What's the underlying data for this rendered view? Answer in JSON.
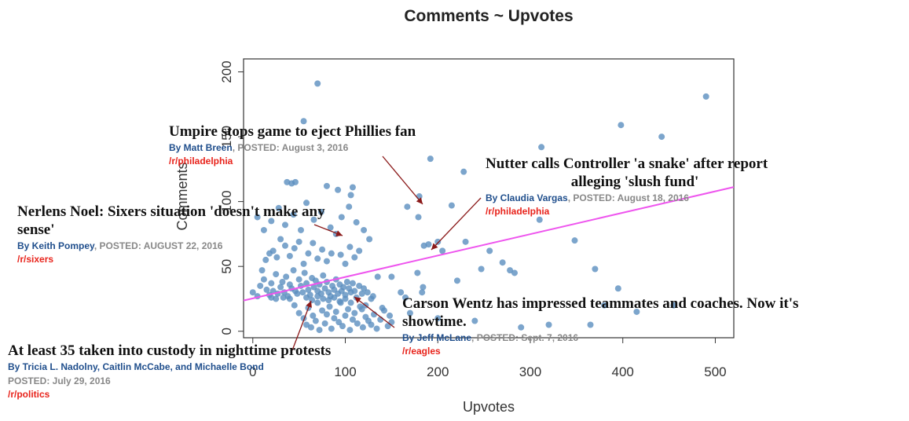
{
  "chart_data": {
    "type": "scatter",
    "title": "Comments ~ Upvotes",
    "xlabel": "Upvotes",
    "ylabel": "Comments",
    "xlim": [
      -10,
      520
    ],
    "ylim": [
      -5,
      210
    ],
    "x_ticks": [
      0,
      100,
      200,
      300,
      400,
      500
    ],
    "y_ticks": [
      0,
      50,
      100,
      150,
      200
    ],
    "x_tick_labels": [
      "0",
      "100",
      "200",
      "300",
      "400",
      "500"
    ],
    "y_tick_labels": [
      "0",
      "50",
      "100",
      "150",
      "200"
    ],
    "point_color": "#5b8fbf",
    "trend_color": "#ee55ee",
    "trendline": {
      "x": [
        -10,
        520
      ],
      "y": [
        23.7,
        111.2
      ]
    },
    "points": [
      [
        70,
        191
      ],
      [
        55,
        162
      ],
      [
        192,
        133
      ],
      [
        228,
        123
      ],
      [
        312,
        142
      ],
      [
        398,
        159
      ],
      [
        442,
        150
      ],
      [
        490,
        181
      ],
      [
        108,
        111
      ],
      [
        106,
        105
      ],
      [
        180,
        104
      ],
      [
        167,
        96
      ],
      [
        179,
        88
      ],
      [
        215,
        97
      ],
      [
        37,
        115
      ],
      [
        42,
        114
      ],
      [
        46,
        115
      ],
      [
        80,
        112
      ],
      [
        92,
        109
      ],
      [
        185,
        66
      ],
      [
        190,
        67
      ],
      [
        200,
        69
      ],
      [
        230,
        69
      ],
      [
        256,
        62
      ],
      [
        310,
        86
      ],
      [
        348,
        70
      ],
      [
        370,
        48
      ],
      [
        380,
        20
      ],
      [
        395,
        33
      ],
      [
        270,
        53
      ],
      [
        278,
        47
      ],
      [
        283,
        45
      ],
      [
        221,
        39
      ],
      [
        247,
        48
      ],
      [
        205,
        62
      ],
      [
        183,
        30
      ],
      [
        184,
        34
      ],
      [
        178,
        45
      ],
      [
        150,
        42
      ],
      [
        135,
        42
      ],
      [
        160,
        30
      ],
      [
        165,
        26
      ],
      [
        130,
        27
      ],
      [
        118,
        17
      ],
      [
        122,
        20
      ],
      [
        140,
        18
      ],
      [
        148,
        12
      ],
      [
        170,
        14
      ],
      [
        200,
        10
      ],
      [
        240,
        8
      ],
      [
        290,
        3
      ],
      [
        320,
        5
      ],
      [
        365,
        5
      ],
      [
        415,
        15
      ],
      [
        455,
        20
      ],
      [
        0,
        30
      ],
      [
        5,
        27
      ],
      [
        8,
        35
      ],
      [
        12,
        40
      ],
      [
        15,
        32
      ],
      [
        18,
        28
      ],
      [
        20,
        37
      ],
      [
        22,
        31
      ],
      [
        25,
        44
      ],
      [
        27,
        29
      ],
      [
        30,
        34
      ],
      [
        32,
        38
      ],
      [
        34,
        30
      ],
      [
        36,
        42
      ],
      [
        38,
        27
      ],
      [
        40,
        36
      ],
      [
        42,
        33
      ],
      [
        44,
        47
      ],
      [
        46,
        31
      ],
      [
        48,
        29
      ],
      [
        50,
        40
      ],
      [
        52,
        35
      ],
      [
        54,
        30
      ],
      [
        56,
        45
      ],
      [
        58,
        37
      ],
      [
        60,
        32
      ],
      [
        62,
        28
      ],
      [
        64,
        41
      ],
      [
        66,
        34
      ],
      [
        68,
        39
      ],
      [
        70,
        31
      ],
      [
        72,
        36
      ],
      [
        74,
        29
      ],
      [
        76,
        43
      ],
      [
        78,
        33
      ],
      [
        80,
        38
      ],
      [
        82,
        30
      ],
      [
        84,
        27
      ],
      [
        86,
        35
      ],
      [
        88,
        32
      ],
      [
        90,
        40
      ],
      [
        92,
        29
      ],
      [
        94,
        36
      ],
      [
        96,
        31
      ],
      [
        98,
        34
      ],
      [
        100,
        28
      ],
      [
        102,
        38
      ],
      [
        104,
        33
      ],
      [
        106,
        30
      ],
      [
        108,
        37
      ],
      [
        110,
        31
      ],
      [
        112,
        26
      ],
      [
        115,
        35
      ],
      [
        118,
        29
      ],
      [
        120,
        33
      ],
      [
        124,
        30
      ],
      [
        128,
        25
      ],
      [
        10,
        47
      ],
      [
        14,
        55
      ],
      [
        18,
        60
      ],
      [
        22,
        62
      ],
      [
        26,
        57
      ],
      [
        30,
        71
      ],
      [
        35,
        66
      ],
      [
        40,
        58
      ],
      [
        45,
        64
      ],
      [
        50,
        69
      ],
      [
        55,
        52
      ],
      [
        60,
        60
      ],
      [
        65,
        68
      ],
      [
        70,
        56
      ],
      [
        75,
        63
      ],
      [
        80,
        54
      ],
      [
        85,
        60
      ],
      [
        90,
        75
      ],
      [
        95,
        59
      ],
      [
        100,
        52
      ],
      [
        105,
        65
      ],
      [
        110,
        57
      ],
      [
        115,
        62
      ],
      [
        5,
        88
      ],
      [
        12,
        78
      ],
      [
        20,
        85
      ],
      [
        28,
        95
      ],
      [
        35,
        82
      ],
      [
        44,
        90
      ],
      [
        52,
        78
      ],
      [
        58,
        99
      ],
      [
        66,
        86
      ],
      [
        74,
        92
      ],
      [
        84,
        80
      ],
      [
        96,
        88
      ],
      [
        104,
        96
      ],
      [
        112,
        84
      ],
      [
        120,
        78
      ],
      [
        126,
        71
      ],
      [
        45,
        20
      ],
      [
        50,
        14
      ],
      [
        55,
        10
      ],
      [
        58,
        5
      ],
      [
        60,
        18
      ],
      [
        63,
        3
      ],
      [
        65,
        12
      ],
      [
        68,
        8
      ],
      [
        70,
        22
      ],
      [
        72,
        1
      ],
      [
        75,
        16
      ],
      [
        78,
        6
      ],
      [
        80,
        13
      ],
      [
        83,
        19
      ],
      [
        85,
        2
      ],
      [
        88,
        10
      ],
      [
        90,
        15
      ],
      [
        93,
        7
      ],
      [
        95,
        22
      ],
      [
        97,
        4
      ],
      [
        100,
        12
      ],
      [
        103,
        17
      ],
      [
        105,
        1
      ],
      [
        108,
        9
      ],
      [
        110,
        14
      ],
      [
        113,
        6
      ],
      [
        116,
        19
      ],
      [
        119,
        3
      ],
      [
        122,
        11
      ],
      [
        125,
        8
      ],
      [
        128,
        5
      ],
      [
        131,
        13
      ],
      [
        134,
        2
      ],
      [
        138,
        9
      ],
      [
        142,
        16
      ],
      [
        146,
        4
      ],
      [
        150,
        7
      ],
      [
        58,
        26
      ],
      [
        64,
        24
      ],
      [
        70,
        27
      ],
      [
        76,
        25
      ],
      [
        82,
        24
      ],
      [
        88,
        26
      ],
      [
        94,
        23
      ],
      [
        100,
        25
      ],
      [
        106,
        22
      ],
      [
        20,
        26
      ],
      [
        25,
        25
      ],
      [
        33,
        26
      ],
      [
        40,
        25
      ]
    ]
  },
  "annotations": [
    {
      "headline": "Umpire stops game to eject Phillies fan",
      "author": "By Matt Breen",
      "posted": ", POSTED: August 3, 2016",
      "subreddit": "/r/philadelphia"
    },
    {
      "headline": "Nutter calls Controller 'a snake' after report",
      "headline2": "alleging 'slush fund'",
      "author": "By Claudia Vargas",
      "posted": ", POSTED: August 18, 2016",
      "subreddit": "/r/philadelphia"
    },
    {
      "headline": "Nerlens Noel: Sixers situation 'doesn't make any",
      "headline2": "sense'",
      "author": "By Keith Pompey",
      "posted": ", POSTED: AUGUST 22, 2016",
      "subreddit": "/r/sixers"
    },
    {
      "headline": "Carson Wentz has impressed teammates and coaches. Now it's",
      "headline2": "showtime.",
      "author": "By Jeff McLane",
      "posted": ", POSTED: Sept. 7, 2016",
      "subreddit": "/r/eagles"
    },
    {
      "headline": "At least 35 taken into custody in nighttime protests",
      "author": "By Tricia L. Nadolny, Caitlin McCabe, and Michaelle Bond",
      "posted": "POSTED: July 29, 2016",
      "subreddit": "/r/politics"
    }
  ]
}
